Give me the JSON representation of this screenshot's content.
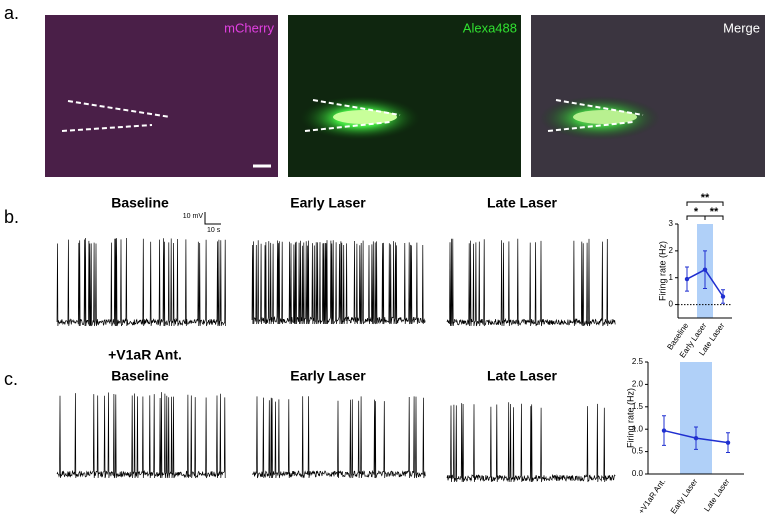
{
  "panel_labels": [
    "a.",
    "b.",
    "c."
  ],
  "images": [
    "mCherry",
    "Alexa488",
    "Merge"
  ],
  "traces_b": [
    "Baseline",
    "Early Laser",
    "Late Laser"
  ],
  "scale_bar": [
    "10 mV",
    "10 s"
  ],
  "condition": "+V1aR Ant.",
  "traces_c": [
    "Baseline",
    "Early Laser",
    "Late Laser"
  ],
  "chart_data": [
    {
      "type": "line",
      "y_label": "Firing rate (Hz)",
      "categories": [
        "Baseline",
        "Early Laser",
        "Late Laser"
      ],
      "values": [
        0.95,
        1.3,
        0.3
      ],
      "errors": [
        0.45,
        0.7,
        0.25
      ],
      "color": "#1f2fd0",
      "ylim": [
        -0.5,
        3
      ],
      "yticks": [
        0,
        1,
        2,
        3
      ],
      "reference_line": 0,
      "highlight": "Early Laser",
      "annotations": [
        "**",
        "*",
        "**"
      ]
    },
    {
      "type": "line",
      "y_label": "Firing rate (Hz)",
      "categories": [
        "+V1aR Ant.",
        "Early Laser",
        "Late Laser"
      ],
      "values": [
        0.97,
        0.8,
        0.7
      ],
      "errors": [
        0.33,
        0.25,
        0.22
      ],
      "color": "#1f2fd0",
      "ylim": [
        0,
        2.5
      ],
      "yticks": [
        {
          "value": 0,
          "label": "0.0"
        },
        {
          "value": 0.5,
          "label": "0.5"
        },
        {
          "value": 1,
          "label": "1.0"
        },
        {
          "value": 1.5,
          "label": "1.5"
        },
        {
          "value": 2,
          "label": "2.0"
        },
        {
          "value": 2.5,
          "label": "2.5"
        }
      ],
      "highlight": "Early Laser"
    }
  ]
}
